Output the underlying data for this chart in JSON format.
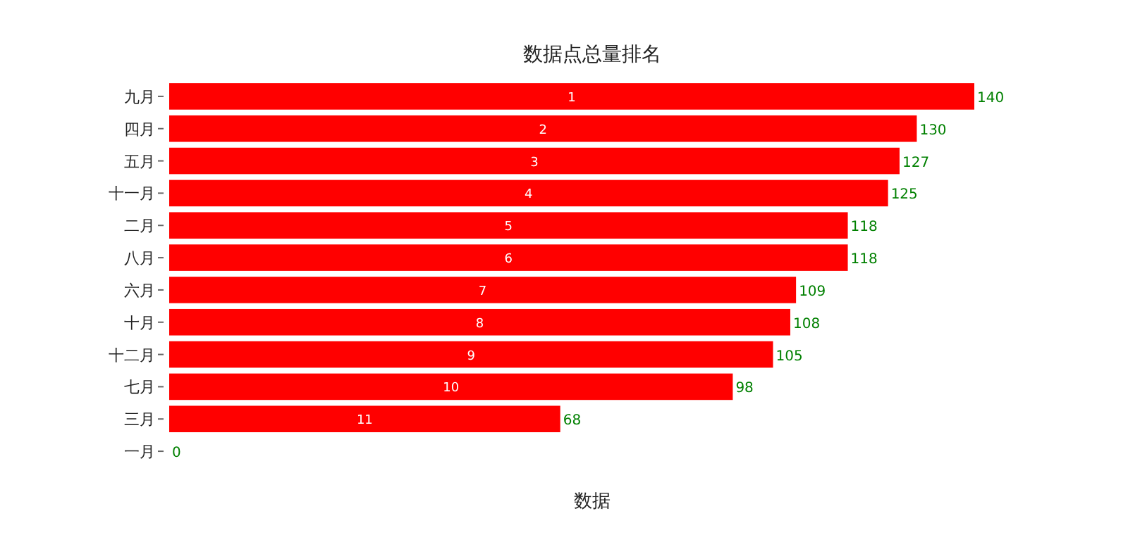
{
  "chart_data": {
    "type": "bar",
    "orientation": "horizontal",
    "title": "数据点总量排名",
    "xlabel": "数据",
    "categories": [
      "九月",
      "四月",
      "五月",
      "十一月",
      "二月",
      "八月",
      "六月",
      "十月",
      "十二月",
      "七月",
      "三月",
      "一月"
    ],
    "values": [
      140,
      130,
      127,
      125,
      118,
      118,
      109,
      108,
      105,
      98,
      68,
      0
    ],
    "color": "#ff0000",
    "data_labels": true,
    "annotations": [
      {
        "text": "1",
        "x": 70,
        "y": "九月"
      },
      {
        "text": "2",
        "x": 65,
        "y": "四月"
      },
      {
        "text": "3",
        "x": 63.5,
        "y": "五月"
      },
      {
        "text": "4",
        "x": 62.5,
        "y": "十一月"
      },
      {
        "text": "5",
        "x": 59,
        "y": "二月"
      },
      {
        "text": "6",
        "x": 59,
        "y": "八月"
      },
      {
        "text": "7",
        "x": 54.5,
        "y": "六月"
      },
      {
        "text": "8",
        "x": 54,
        "y": "十月"
      },
      {
        "text": "9",
        "x": 52.5,
        "y": "十二月"
      },
      {
        "text": "10",
        "x": 49,
        "y": "七月"
      },
      {
        "text": "11",
        "x": 34,
        "y": "三月"
      }
    ]
  }
}
